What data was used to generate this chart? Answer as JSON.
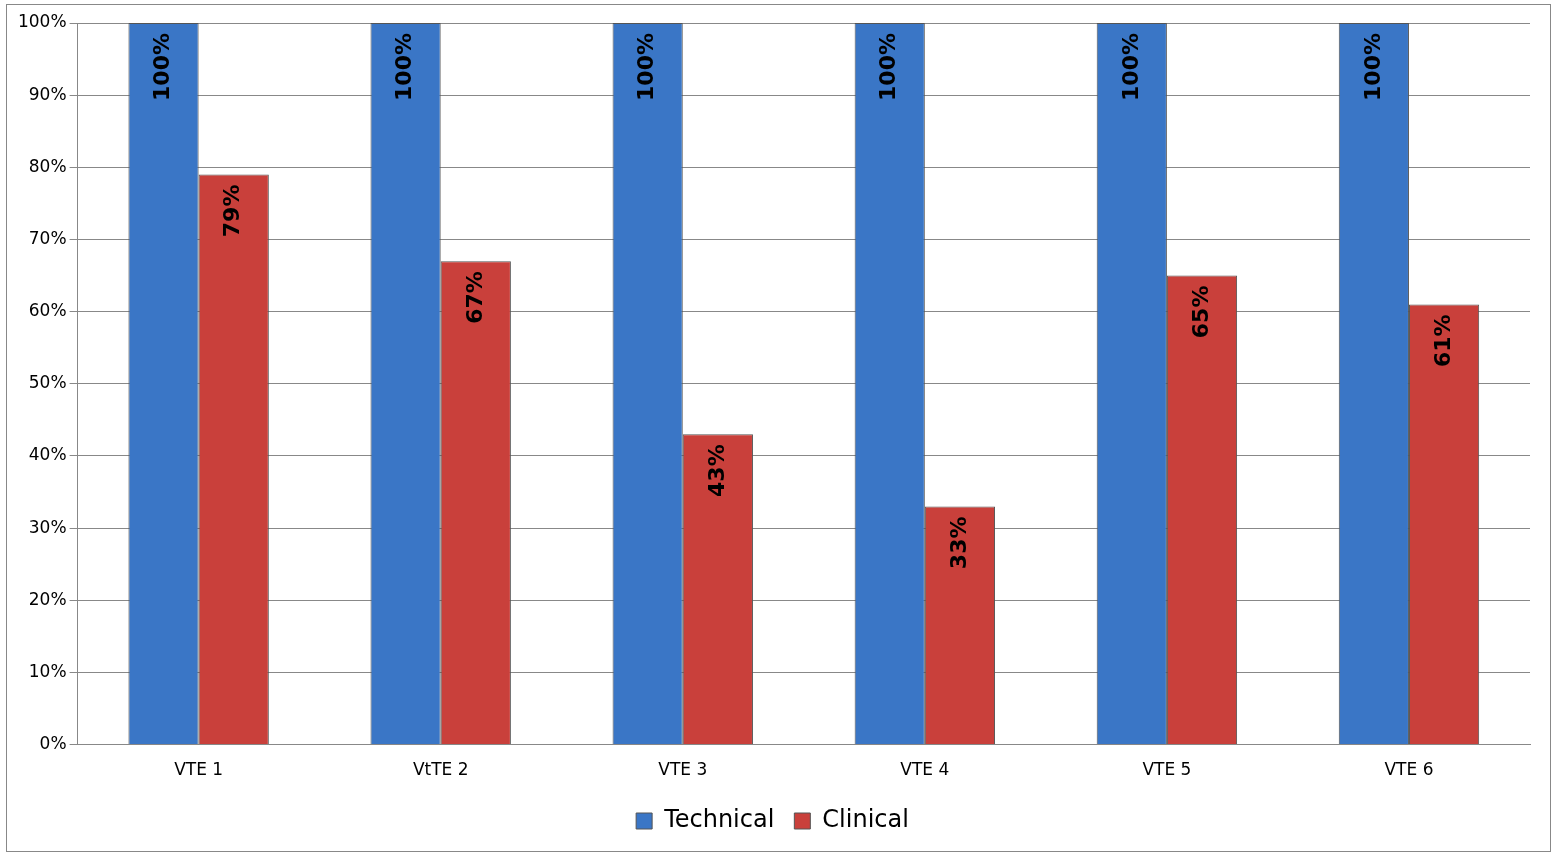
{
  "chart_data": {
    "type": "bar",
    "categories": [
      "VTE 1",
      "VtTE 2",
      "VTE 3",
      "VTE 4",
      "VTE 5",
      "VTE 6"
    ],
    "series": [
      {
        "name": "Technical",
        "color": "#3a76c6",
        "values": [
          100,
          100,
          100,
          100,
          100,
          100
        ],
        "value_labels": [
          "100%",
          "100%",
          "100%",
          "100%",
          "100%",
          "100%"
        ]
      },
      {
        "name": "Clinical",
        "color": "#c9403b",
        "values": [
          79,
          67,
          43,
          33,
          65,
          61
        ],
        "value_labels": [
          "79%",
          "67%",
          "43%",
          "33%",
          "65%",
          "61%"
        ]
      }
    ],
    "ylim": [
      0,
      100
    ],
    "yticks": [
      {
        "value": 0,
        "label": "0%"
      },
      {
        "value": 10,
        "label": "10%"
      },
      {
        "value": 20,
        "label": "20%"
      },
      {
        "value": 30,
        "label": "30%"
      },
      {
        "value": 40,
        "label": "40%"
      },
      {
        "value": 50,
        "label": "50%"
      },
      {
        "value": 60,
        "label": "60%"
      },
      {
        "value": 70,
        "label": "70%"
      },
      {
        "value": 80,
        "label": "80%"
      },
      {
        "value": 90,
        "label": "90%"
      },
      {
        "value": 100,
        "label": "100%"
      }
    ],
    "grid": "y",
    "legend": "bottom"
  }
}
